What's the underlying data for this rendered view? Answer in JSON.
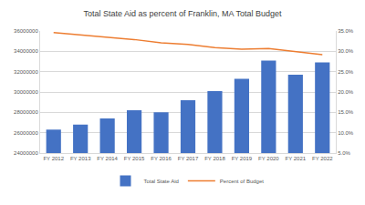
{
  "chart_data": {
    "type": "bar",
    "title": "Total State Aid as percent of Franklin, MA Total Budget",
    "categories": [
      "FY 2012",
      "FY 2013",
      "FY 2014",
      "FY 2015",
      "FY 2016",
      "FY 2017",
      "FY 2018",
      "FY 2019",
      "FY 2020",
      "FY 2021",
      "FY 2022"
    ],
    "series": [
      {
        "name": "Total State Aid",
        "type": "bar",
        "color": "#4472c4",
        "values": [
          26300000,
          26800000,
          27400000,
          28200000,
          28000000,
          29200000,
          30100000,
          31300000,
          33100000,
          31700000,
          32900000
        ]
      },
      {
        "name": "Percent of Budget",
        "type": "line",
        "color": "#ed7d31",
        "axis": "y2",
        "line_style": "solid",
        "values": [
          34.6,
          34.0,
          33.4,
          32.9,
          32.1,
          31.7,
          30.9,
          30.5,
          30.7,
          29.9,
          29.2
        ]
      }
    ],
    "ylim": [
      24000000,
      36000000
    ],
    "yticks": [
      24000000,
      26000000,
      28000000,
      30000000,
      32000000,
      34000000,
      36000000
    ],
    "y2lim": [
      5,
      35
    ],
    "y2ticks": [
      {
        "value": 5,
        "label": "5.0%"
      },
      {
        "value": 10,
        "label": "10.0%"
      },
      {
        "value": 15,
        "label": "15.0%"
      },
      {
        "value": 20,
        "label": "20.0%"
      },
      {
        "value": 25,
        "label": "25.0%"
      },
      {
        "value": 30,
        "label": "30.0%"
      },
      {
        "value": 35,
        "label": "35.0%"
      }
    ],
    "grid": true,
    "legend": "bottom"
  }
}
